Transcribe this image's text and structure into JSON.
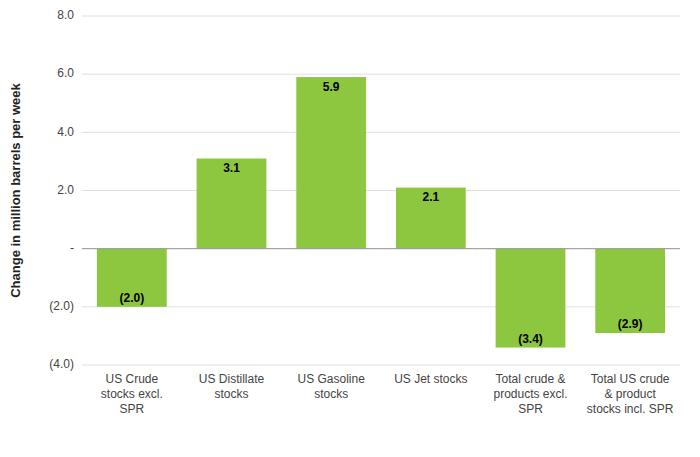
{
  "chart_data": {
    "type": "bar",
    "categories": [
      "US Crude\nstocks excl.\nSPR",
      "US Distillate\nstocks",
      "US Gasoline\nstocks",
      "US Jet stocks",
      "Total crude &\nproducts excl.\nSPR",
      "Total US crude\n& product\nstocks incl. SPR"
    ],
    "values": [
      -2.0,
      3.1,
      5.9,
      2.1,
      -3.4,
      -2.9
    ],
    "value_labels": [
      "(2.0)",
      "3.1",
      "5.9",
      "2.1",
      "(3.4)",
      "(2.9)"
    ],
    "data_labels": true,
    "color": "#8DC63F",
    "ylabel": "Change in million barrels per week",
    "ylim": [
      -4.0,
      8.0
    ],
    "yticks": [
      {
        "value": -4.0,
        "label": "(4.0)"
      },
      {
        "value": -2.0,
        "label": "(2.0)"
      },
      {
        "value": 0.0,
        "label": "-"
      },
      {
        "value": 2.0,
        "label": "2.0"
      },
      {
        "value": 4.0,
        "label": "4.0"
      },
      {
        "value": 6.0,
        "label": "6.0"
      },
      {
        "value": 8.0,
        "label": "8.0"
      }
    ],
    "grid": true
  }
}
